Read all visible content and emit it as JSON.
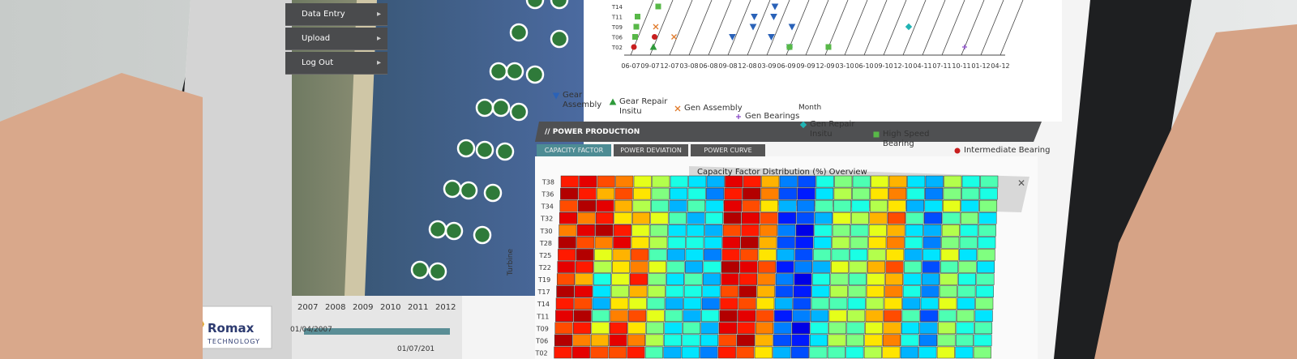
{
  "menu": [
    "Data Entry",
    "Upload",
    "Log Out"
  ],
  "logo": {
    "name": "Romax",
    "tagline": "TECHNOLOGY"
  },
  "timeline": {
    "years": [
      "2007",
      "2008",
      "2009",
      "2010",
      "2011",
      "2012"
    ],
    "start": "01/04/2007",
    "end": "01/07/201"
  },
  "events_chart": {
    "type": "scatter",
    "x_label": "Month",
    "categories": [
      "06-07",
      "09-07",
      "12-07",
      "03-08",
      "06-08",
      "09-08",
      "12-08",
      "03-09",
      "06-09",
      "09-09",
      "12-09",
      "03-10",
      "06-10",
      "09-10",
      "12-10",
      "04-11",
      "07-11",
      "10-11",
      "01-12",
      "04-12"
    ],
    "y_categories": [
      "T14",
      "T11",
      "T09",
      "T06",
      "T02"
    ],
    "series": [
      {
        "name": "Gear Assembly",
        "color": "#2a62b8",
        "marker": "triangle-down",
        "points": [
          [
            "03-09",
            "T14"
          ],
          [
            "03-09",
            "T11"
          ],
          [
            "12-08",
            "T11"
          ],
          [
            "03-09",
            "T06"
          ],
          [
            "09-08",
            "T06"
          ],
          [
            "12-08",
            "T09"
          ],
          [
            "06-09",
            "T02"
          ],
          [
            "06-09",
            "T09"
          ]
        ]
      },
      {
        "name": "Gear Repair Insitu",
        "color": "#2e9a3a",
        "marker": "triangle-up",
        "points": [
          [
            "09-07",
            "T02"
          ]
        ]
      },
      {
        "name": "Gen Assembly",
        "color": "#e07a2a",
        "marker": "x",
        "points": [
          [
            "09-07",
            "T14"
          ],
          [
            "09-07",
            "T09"
          ],
          [
            "12-07",
            "T06"
          ]
        ]
      },
      {
        "name": "Gen Bearings",
        "color": "#8a4bc8",
        "marker": "plus",
        "points": [
          [
            "10-11",
            "T02"
          ]
        ]
      },
      {
        "name": "Gen Repair Insitu",
        "color": "#22b4b4",
        "marker": "diamond",
        "points": [
          [
            "12-10",
            "T09"
          ],
          [
            "06-09",
            "T02"
          ]
        ]
      },
      {
        "name": "High Speed Bearing",
        "color": "#58b848",
        "marker": "square",
        "points": [
          [
            "06-07",
            "T11"
          ],
          [
            "06-07",
            "T09"
          ],
          [
            "06-07",
            "T06"
          ],
          [
            "09-07",
            "T14"
          ],
          [
            "06-09",
            "T02"
          ],
          [
            "12-09",
            "T02"
          ]
        ]
      },
      {
        "name": "Intermediate Bearing",
        "color": "#c81e1e",
        "marker": "circle",
        "points": [
          [
            "06-07",
            "T02"
          ],
          [
            "09-07",
            "T06"
          ]
        ]
      }
    ]
  },
  "section": {
    "title": "// POWER PRODUCTION",
    "tabs": [
      "CAPACITY FACTOR",
      "POWER DEVIATION",
      "POWER CURVE"
    ],
    "close": "✕"
  },
  "chart_data": {
    "type": "heatmap",
    "title": "Capacity Factor Distribution (%) Overview",
    "y_label": "Turbine",
    "rows": [
      "T38",
      "T36",
      "T34",
      "T32",
      "T30",
      "T28",
      "T25",
      "T22",
      "T19",
      "T17",
      "T14",
      "T11",
      "T09",
      "T06",
      "T02"
    ],
    "colormap": "jet",
    "vlim": [
      0,
      100
    ],
    "values": [
      [
        85,
        90,
        80,
        75,
        60,
        55,
        40,
        35,
        30,
        90,
        85,
        70,
        25,
        20,
        40,
        50,
        45,
        60,
        70,
        35,
        30,
        55,
        40,
        45
      ],
      [
        95,
        85,
        70,
        80,
        65,
        50,
        35,
        40,
        25,
        85,
        95,
        75,
        20,
        15,
        35,
        55,
        50,
        65,
        75,
        40,
        25,
        50,
        45,
        40
      ],
      [
        80,
        95,
        90,
        70,
        55,
        45,
        30,
        45,
        35,
        90,
        80,
        65,
        30,
        25,
        45,
        45,
        40,
        55,
        65,
        30,
        35,
        60,
        35,
        50
      ],
      [
        90,
        75,
        85,
        65,
        70,
        60,
        45,
        30,
        40,
        95,
        90,
        80,
        15,
        20,
        30,
        60,
        55,
        70,
        80,
        45,
        20,
        45,
        50,
        35
      ],
      [
        75,
        90,
        95,
        85,
        60,
        50,
        35,
        35,
        30,
        80,
        85,
        75,
        25,
        10,
        40,
        50,
        45,
        60,
        70,
        35,
        30,
        55,
        40,
        45
      ],
      [
        95,
        80,
        75,
        90,
        65,
        55,
        40,
        40,
        35,
        90,
        95,
        70,
        20,
        15,
        35,
        55,
        50,
        65,
        75,
        40,
        25,
        50,
        45,
        40
      ],
      [
        85,
        95,
        60,
        70,
        80,
        45,
        30,
        35,
        25,
        85,
        80,
        65,
        30,
        20,
        45,
        45,
        40,
        55,
        65,
        30,
        35,
        60,
        35,
        50
      ],
      [
        90,
        85,
        55,
        65,
        75,
        60,
        45,
        30,
        40,
        95,
        90,
        80,
        15,
        25,
        30,
        60,
        55,
        70,
        80,
        45,
        20,
        45,
        50,
        35
      ],
      [
        80,
        70,
        40,
        60,
        85,
        50,
        35,
        45,
        30,
        90,
        85,
        75,
        25,
        10,
        40,
        50,
        45,
        60,
        70,
        35,
        30,
        55,
        40,
        45
      ],
      [
        95,
        90,
        35,
        55,
        70,
        55,
        40,
        40,
        35,
        80,
        95,
        70,
        20,
        15,
        35,
        55,
        50,
        65,
        75,
        40,
        25,
        50,
        45,
        40
      ],
      [
        85,
        80,
        30,
        65,
        60,
        45,
        30,
        35,
        25,
        85,
        80,
        65,
        30,
        20,
        45,
        45,
        40,
        55,
        65,
        30,
        35,
        60,
        35,
        50
      ],
      [
        90,
        95,
        45,
        75,
        80,
        60,
        45,
        30,
        40,
        95,
        90,
        80,
        15,
        25,
        30,
        60,
        55,
        70,
        80,
        45,
        20,
        45,
        50,
        35
      ],
      [
        80,
        85,
        60,
        85,
        65,
        50,
        35,
        45,
        30,
        90,
        85,
        75,
        25,
        10,
        40,
        50,
        45,
        60,
        70,
        35,
        30,
        55,
        40,
        45
      ],
      [
        95,
        75,
        70,
        90,
        75,
        55,
        40,
        40,
        35,
        80,
        95,
        70,
        20,
        15,
        35,
        55,
        50,
        65,
        75,
        40,
        25,
        50,
        45,
        40
      ],
      [
        85,
        90,
        80,
        80,
        85,
        45,
        30,
        35,
        25,
        85,
        80,
        65,
        30,
        20,
        45,
        45,
        40,
        55,
        65,
        30,
        35,
        60,
        35,
        50
      ]
    ]
  }
}
